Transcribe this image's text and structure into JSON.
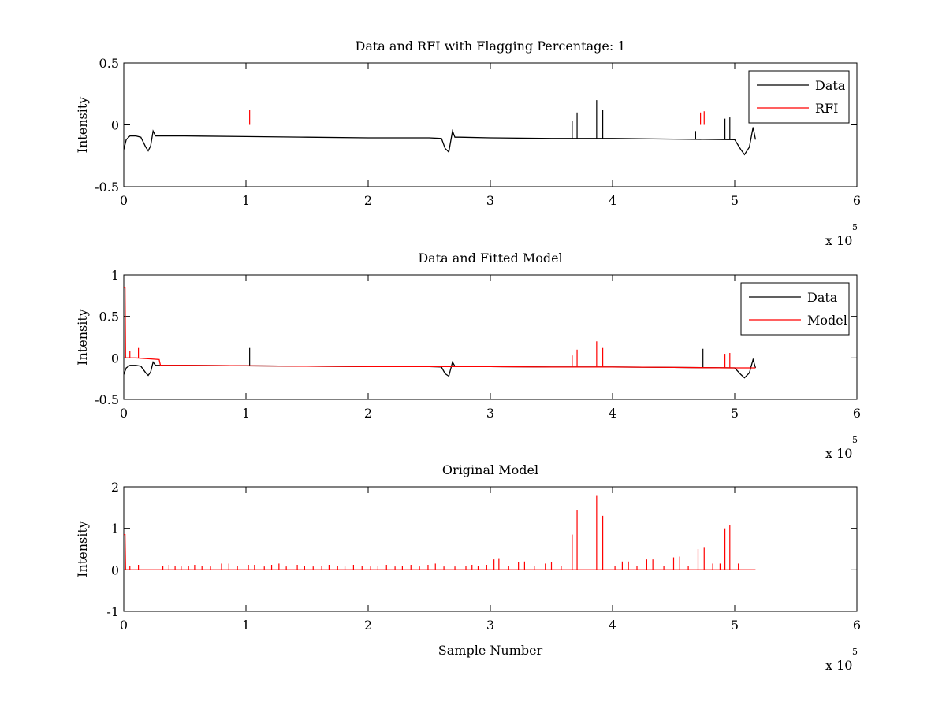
{
  "chart_data": [
    {
      "type": "line",
      "title": "Data and RFI with Flagging Percentage: 1",
      "xlabel": "",
      "ylabel": "Intensity",
      "xlim": [
        0,
        6
      ],
      "ylim": [
        -0.5,
        0.5
      ],
      "xticks": [
        0,
        1,
        2,
        3,
        4,
        5,
        6
      ],
      "xtick_labels": [
        "0",
        "1",
        "2",
        "3",
        "4",
        "5",
        "6"
      ],
      "yticks": [
        -0.5,
        0,
        0.5
      ],
      "ytick_labels": [
        "-0.5",
        "0",
        "0.5"
      ],
      "x_multiplier": {
        "base": "x 10",
        "exponent": "5"
      },
      "grid": false,
      "legend": {
        "position": "top-right",
        "entries": [
          {
            "label": "Data",
            "color": "#000000"
          },
          {
            "label": "RFI",
            "color": "#ff0000"
          }
        ]
      },
      "series": [
        {
          "name": "Data",
          "color": "#000000",
          "x": [
            0,
            0.02,
            0.05,
            0.1,
            0.14,
            0.18,
            0.2,
            0.22,
            0.24,
            0.26,
            0.3,
            0.5,
            1.0,
            1.5,
            2.0,
            2.5,
            2.6,
            2.63,
            2.66,
            2.69,
            2.71,
            2.75,
            3.0,
            3.5,
            4.0,
            4.5,
            5.0,
            5.05,
            5.08,
            5.12,
            5.15,
            5.17
          ],
          "y": [
            -0.2,
            -0.12,
            -0.09,
            -0.09,
            -0.1,
            -0.18,
            -0.21,
            -0.17,
            -0.05,
            -0.09,
            -0.09,
            -0.09,
            -0.095,
            -0.1,
            -0.105,
            -0.105,
            -0.11,
            -0.19,
            -0.22,
            -0.05,
            -0.1,
            -0.1,
            -0.105,
            -0.11,
            -0.11,
            -0.115,
            -0.12,
            -0.2,
            -0.24,
            -0.18,
            -0.02,
            -0.12
          ],
          "spikes": [
            {
              "x": 3.67,
              "y": 0.03
            },
            {
              "x": 3.71,
              "y": 0.1
            },
            {
              "x": 3.87,
              "y": 0.2
            },
            {
              "x": 3.92,
              "y": 0.12
            },
            {
              "x": 4.68,
              "y": -0.05
            },
            {
              "x": 4.92,
              "y": 0.05
            },
            {
              "x": 4.96,
              "y": 0.06
            }
          ]
        },
        {
          "name": "RFI",
          "color": "#ff0000",
          "spikes": [
            {
              "x": 1.03,
              "y": 0.12
            },
            {
              "x": 4.72,
              "y": 0.1
            },
            {
              "x": 4.75,
              "y": 0.11
            }
          ]
        }
      ]
    },
    {
      "type": "line",
      "title": "Data and Fitted Model",
      "xlabel": "",
      "ylabel": "Intensity",
      "xlim": [
        0,
        6
      ],
      "ylim": [
        -0.5,
        1
      ],
      "xticks": [
        0,
        1,
        2,
        3,
        4,
        5,
        6
      ],
      "xtick_labels": [
        "0",
        "1",
        "2",
        "3",
        "4",
        "5",
        "6"
      ],
      "yticks": [
        -0.5,
        0,
        0.5,
        1
      ],
      "ytick_labels": [
        "-0.5",
        "0",
        "0.5",
        "1"
      ],
      "x_multiplier": {
        "base": "x 10",
        "exponent": "5"
      },
      "grid": false,
      "legend": {
        "position": "top-right",
        "entries": [
          {
            "label": "Data",
            "color": "#000000"
          },
          {
            "label": "Model",
            "color": "#ff0000"
          }
        ]
      },
      "series": [
        {
          "name": "Data",
          "color": "#000000",
          "x": [
            0,
            0.02,
            0.05,
            0.1,
            0.14,
            0.18,
            0.2,
            0.22,
            0.24,
            0.26,
            0.3,
            0.5,
            1.0,
            1.5,
            2.0,
            2.5,
            2.6,
            2.63,
            2.66,
            2.69,
            2.71,
            2.75,
            3.0,
            3.5,
            4.0,
            4.5,
            5.0,
            5.05,
            5.08,
            5.12,
            5.15,
            5.17
          ],
          "y": [
            -0.2,
            -0.12,
            -0.09,
            -0.09,
            -0.1,
            -0.18,
            -0.21,
            -0.17,
            -0.05,
            -0.09,
            -0.09,
            -0.09,
            -0.095,
            -0.1,
            -0.105,
            -0.105,
            -0.11,
            -0.19,
            -0.22,
            -0.05,
            -0.1,
            -0.1,
            -0.105,
            -0.11,
            -0.11,
            -0.115,
            -0.12,
            -0.2,
            -0.24,
            -0.18,
            -0.02,
            -0.12
          ],
          "spikes": [
            {
              "x": 1.03,
              "y": 0.12
            },
            {
              "x": 4.74,
              "y": 0.11
            }
          ]
        },
        {
          "name": "Model",
          "color": "#ff0000",
          "x": [
            0,
            0.01,
            0.015,
            0.03,
            0.1,
            0.2,
            0.29,
            0.3,
            0.5,
            1.0,
            1.5,
            2.0,
            2.5,
            3.0,
            3.5,
            4.0,
            4.5,
            5.0,
            5.17
          ],
          "y": [
            0.85,
            0.85,
            0.0,
            0.0,
            0.0,
            -0.01,
            -0.02,
            -0.09,
            -0.09,
            -0.095,
            -0.1,
            -0.105,
            -0.105,
            -0.105,
            -0.11,
            -0.11,
            -0.115,
            -0.12,
            -0.12
          ],
          "spikes": [
            {
              "x": 0.05,
              "y": 0.08
            },
            {
              "x": 0.12,
              "y": 0.12
            },
            {
              "x": 3.67,
              "y": 0.03
            },
            {
              "x": 3.71,
              "y": 0.1
            },
            {
              "x": 3.87,
              "y": 0.2
            },
            {
              "x": 3.92,
              "y": 0.12
            },
            {
              "x": 4.92,
              "y": 0.05
            },
            {
              "x": 4.96,
              "y": 0.06
            }
          ]
        }
      ]
    },
    {
      "type": "line",
      "title": "Original Model",
      "xlabel": "Sample Number",
      "ylabel": "Intensity",
      "xlim": [
        0,
        6
      ],
      "ylim": [
        -1,
        2
      ],
      "xticks": [
        0,
        1,
        2,
        3,
        4,
        5,
        6
      ],
      "xtick_labels": [
        "0",
        "1",
        "2",
        "3",
        "4",
        "5",
        "6"
      ],
      "yticks": [
        -1,
        0,
        1,
        2
      ],
      "ytick_labels": [
        "-1",
        "0",
        "1",
        "2"
      ],
      "x_multiplier": {
        "base": "x 10",
        "exponent": "5"
      },
      "grid": false,
      "series": [
        {
          "color": "#ff0000",
          "x": [
            0,
            0.01,
            0.015,
            5.17
          ],
          "y": [
            0.85,
            0.85,
            0.0,
            0.0
          ],
          "spikes": [
            {
              "x": 0.05,
              "y": 0.1
            },
            {
              "x": 0.12,
              "y": 0.12
            },
            {
              "x": 0.32,
              "y": 0.1
            },
            {
              "x": 0.37,
              "y": 0.12
            },
            {
              "x": 0.42,
              "y": 0.1
            },
            {
              "x": 0.47,
              "y": 0.08
            },
            {
              "x": 0.53,
              "y": 0.1
            },
            {
              "x": 0.58,
              "y": 0.12
            },
            {
              "x": 0.64,
              "y": 0.1
            },
            {
              "x": 0.71,
              "y": 0.08
            },
            {
              "x": 0.8,
              "y": 0.15
            },
            {
              "x": 0.86,
              "y": 0.15
            },
            {
              "x": 0.93,
              "y": 0.1
            },
            {
              "x": 1.02,
              "y": 0.12
            },
            {
              "x": 1.07,
              "y": 0.12
            },
            {
              "x": 1.15,
              "y": 0.08
            },
            {
              "x": 1.21,
              "y": 0.12
            },
            {
              "x": 1.27,
              "y": 0.15
            },
            {
              "x": 1.33,
              "y": 0.08
            },
            {
              "x": 1.42,
              "y": 0.12
            },
            {
              "x": 1.48,
              "y": 0.1
            },
            {
              "x": 1.55,
              "y": 0.08
            },
            {
              "x": 1.62,
              "y": 0.1
            },
            {
              "x": 1.68,
              "y": 0.12
            },
            {
              "x": 1.75,
              "y": 0.1
            },
            {
              "x": 1.81,
              "y": 0.08
            },
            {
              "x": 1.88,
              "y": 0.12
            },
            {
              "x": 1.95,
              "y": 0.1
            },
            {
              "x": 2.02,
              "y": 0.08
            },
            {
              "x": 2.08,
              "y": 0.1
            },
            {
              "x": 2.15,
              "y": 0.12
            },
            {
              "x": 2.22,
              "y": 0.08
            },
            {
              "x": 2.28,
              "y": 0.1
            },
            {
              "x": 2.35,
              "y": 0.12
            },
            {
              "x": 2.42,
              "y": 0.08
            },
            {
              "x": 2.49,
              "y": 0.12
            },
            {
              "x": 2.55,
              "y": 0.15
            },
            {
              "x": 2.62,
              "y": 0.08
            },
            {
              "x": 2.71,
              "y": 0.08
            },
            {
              "x": 2.8,
              "y": 0.1
            },
            {
              "x": 2.85,
              "y": 0.12
            },
            {
              "x": 2.9,
              "y": 0.1
            },
            {
              "x": 2.97,
              "y": 0.12
            },
            {
              "x": 3.03,
              "y": 0.25
            },
            {
              "x": 3.07,
              "y": 0.28
            },
            {
              "x": 3.15,
              "y": 0.1
            },
            {
              "x": 3.23,
              "y": 0.18
            },
            {
              "x": 3.28,
              "y": 0.2
            },
            {
              "x": 3.36,
              "y": 0.1
            },
            {
              "x": 3.45,
              "y": 0.15
            },
            {
              "x": 3.5,
              "y": 0.18
            },
            {
              "x": 3.58,
              "y": 0.1
            },
            {
              "x": 3.67,
              "y": 0.85
            },
            {
              "x": 3.71,
              "y": 1.43
            },
            {
              "x": 3.87,
              "y": 1.8
            },
            {
              "x": 3.92,
              "y": 1.3
            },
            {
              "x": 4.02,
              "y": 0.1
            },
            {
              "x": 4.08,
              "y": 0.2
            },
            {
              "x": 4.13,
              "y": 0.2
            },
            {
              "x": 4.2,
              "y": 0.1
            },
            {
              "x": 4.28,
              "y": 0.25
            },
            {
              "x": 4.33,
              "y": 0.25
            },
            {
              "x": 4.42,
              "y": 0.1
            },
            {
              "x": 4.5,
              "y": 0.3
            },
            {
              "x": 4.55,
              "y": 0.32
            },
            {
              "x": 4.62,
              "y": 0.1
            },
            {
              "x": 4.7,
              "y": 0.5
            },
            {
              "x": 4.75,
              "y": 0.55
            },
            {
              "x": 4.82,
              "y": 0.15
            },
            {
              "x": 4.88,
              "y": 0.15
            },
            {
              "x": 4.92,
              "y": 1.0
            },
            {
              "x": 4.96,
              "y": 1.08
            },
            {
              "x": 5.03,
              "y": 0.15
            }
          ]
        }
      ]
    }
  ]
}
